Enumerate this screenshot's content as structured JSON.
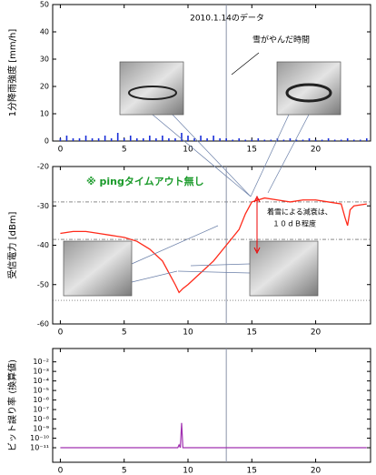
{
  "chart_data": [
    {
      "type": "bar",
      "ylabel": "1分降雨強度 [mm/h]",
      "color": "#1a2fd8",
      "annotations": [
        "2010.1.14のデータ",
        "雪がやんだ時間"
      ],
      "x": [
        0,
        0.5,
        1,
        1.5,
        2,
        2.5,
        3,
        3.5,
        4,
        4.5,
        5,
        5.5,
        6,
        6.5,
        7,
        7.5,
        8,
        8.5,
        9,
        9.5,
        10,
        10.5,
        11,
        11.5,
        12,
        12.5,
        13,
        13.5,
        14,
        14.5,
        15,
        15.5,
        16,
        16.5,
        17,
        17.5,
        18,
        18.5,
        19,
        19.5,
        20,
        20.5,
        21,
        21.5,
        22,
        22.5,
        23,
        23.5,
        24
      ],
      "values": [
        1,
        2,
        1,
        1,
        2,
        1,
        1,
        2,
        1,
        3,
        1,
        2,
        1,
        1,
        2,
        1,
        2,
        1,
        1,
        3,
        2,
        1,
        2,
        1,
        2,
        1,
        1,
        0.5,
        1,
        0.5,
        0.5,
        1,
        0.5,
        0.5,
        1,
        0.5,
        1,
        0.5,
        0.5,
        1,
        0.5,
        0.5,
        1,
        0.5,
        0.5,
        1,
        0.5,
        0.5,
        1
      ],
      "xlim": [
        -0.6,
        24.3
      ],
      "xticks": [
        0,
        5,
        10,
        15,
        20
      ],
      "ylim": [
        0,
        50
      ],
      "yticks": [
        0,
        10,
        20,
        30,
        40,
        50
      ],
      "marker_x": 13
    },
    {
      "type": "line",
      "ylabel": "受信電力 [dBm]",
      "color": "#ff2a1a",
      "annotations": [
        "※ pingタイムアウト無し",
        "着雪による減衰は、",
        "１０ｄＢ程度"
      ],
      "x": [
        0,
        1,
        2,
        3,
        4,
        5,
        6,
        7,
        8,
        8.5,
        9,
        9.3,
        9.6,
        10,
        11,
        12,
        13,
        13.5,
        14,
        14.5,
        15,
        16,
        17,
        18,
        19,
        20,
        21,
        22,
        22.3,
        22.5,
        22.7,
        23,
        24
      ],
      "values": [
        -37,
        -36.5,
        -36.5,
        -37,
        -37.5,
        -38,
        -39,
        -41,
        -44,
        -47,
        -50,
        -52,
        -51,
        -50,
        -47,
        -44,
        -40,
        -38,
        -36,
        -32,
        -29,
        -28,
        -28.5,
        -29,
        -28.5,
        -28.5,
        -29,
        -29.5,
        -33,
        -35,
        -31,
        -30,
        -29.5
      ],
      "hlines": [
        -29,
        -38.5,
        -54
      ],
      "xlim": [
        -0.6,
        24.3
      ],
      "xticks": [
        0,
        5,
        10,
        15,
        20
      ],
      "ylim": [
        -60,
        -20
      ],
      "yticks": [
        -20,
        -30,
        -40,
        -50,
        -60
      ],
      "marker_x": 13
    },
    {
      "type": "line",
      "ylabel": "ビット誤り率 (換算値)",
      "color": "#a030b0",
      "log": true,
      "x": [
        0,
        9.2,
        9.3,
        9.4,
        9.5,
        9.6,
        9.7,
        24
      ],
      "values": [
        1e-11,
        1e-11,
        2e-11,
        1e-11,
        4e-09,
        1e-11,
        1e-11,
        1e-11
      ],
      "xlim": [
        -0.6,
        24.3
      ],
      "xticks": [
        0,
        5,
        10,
        15,
        20
      ],
      "ylim": [
        3e-13,
        0.25
      ],
      "yticks": [
        {
          "value": 0.01,
          "label": "10⁻²"
        },
        {
          "value": 0.001,
          "label": "10⁻³"
        },
        {
          "value": 0.0001,
          "label": "10⁻⁴"
        },
        {
          "value": 1e-05,
          "label": "10⁻⁵"
        },
        {
          "value": 1e-06,
          "label": "10⁻⁶"
        },
        {
          "value": 1e-07,
          "label": "10⁻⁷"
        },
        {
          "value": 1e-08,
          "label": "10⁻⁸"
        },
        {
          "value": 1e-09,
          "label": "10⁻⁹"
        },
        {
          "value": 1e-10,
          "label": "10⁻¹⁰"
        },
        {
          "value": 1e-11,
          "label": "10⁻¹¹"
        }
      ],
      "marker_x": 13
    }
  ]
}
